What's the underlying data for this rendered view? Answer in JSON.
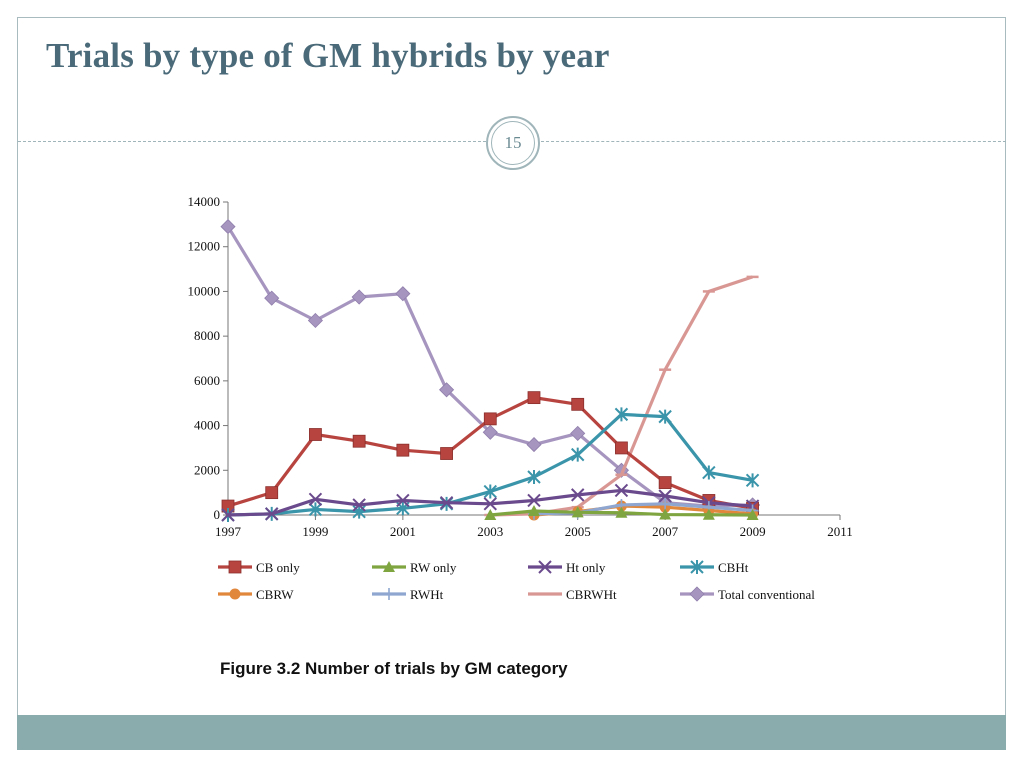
{
  "slide": {
    "title": "Trials by type of GM hybrids by year",
    "page_number": "15",
    "caption": "Figure 3.2 Number of trials by GM category"
  },
  "colors": {
    "title": "#4b6a79",
    "footer": "#8bacac",
    "rule": "#9fb5b9"
  },
  "chart_data": {
    "type": "line",
    "title": "",
    "xlabel": "",
    "ylabel": "",
    "xlim": [
      1997,
      2011
    ],
    "ylim": [
      0,
      14000
    ],
    "x_ticks": [
      "1997",
      "1999",
      "2001",
      "2003",
      "2005",
      "2007",
      "2009",
      "2011"
    ],
    "y_ticks": [
      "0",
      "2000",
      "4000",
      "6000",
      "8000",
      "10000",
      "12000",
      "14000"
    ],
    "grid": false,
    "legend_position": "bottom",
    "series": [
      {
        "name": "CB only",
        "color": "#b84440",
        "marker": "square",
        "x": [
          1997,
          1998,
          1999,
          2000,
          2001,
          2002,
          2003,
          2004,
          2005,
          2006,
          2007,
          2008,
          2009
        ],
        "y": [
          400,
          1000,
          3600,
          3300,
          2900,
          2750,
          4300,
          5250,
          4950,
          3000,
          1450,
          650,
          300
        ]
      },
      {
        "name": "RW only",
        "color": "#7fa540",
        "marker": "triangle",
        "x": [
          2003,
          2004,
          2005,
          2006,
          2007,
          2008,
          2009
        ],
        "y": [
          0,
          180,
          120,
          100,
          20,
          10,
          0
        ]
      },
      {
        "name": "Ht only",
        "color": "#6a4a8c",
        "marker": "x",
        "x": [
          1997,
          1998,
          1999,
          2000,
          2001,
          2002,
          2003,
          2004,
          2005,
          2006,
          2007,
          2008,
          2009
        ],
        "y": [
          0,
          50,
          700,
          450,
          650,
          550,
          500,
          650,
          900,
          1100,
          850,
          550,
          400
        ]
      },
      {
        "name": "CBHt",
        "color": "#3a94aa",
        "marker": "star",
        "x": [
          1997,
          1998,
          1999,
          2000,
          2001,
          2002,
          2003,
          2004,
          2005,
          2006,
          2007,
          2008,
          2009
        ],
        "y": [
          0,
          50,
          250,
          150,
          300,
          500,
          1050,
          1700,
          2700,
          4500,
          4400,
          1900,
          1550
        ]
      },
      {
        "name": "CBRW",
        "color": "#e0873c",
        "marker": "circle",
        "x": [
          2004,
          2005,
          2006,
          2007,
          2008,
          2009
        ],
        "y": [
          0,
          150,
          400,
          350,
          200,
          50
        ]
      },
      {
        "name": "RWHt",
        "color": "#8ea6d0",
        "marker": "plus",
        "x": [
          2004,
          2005,
          2006,
          2007,
          2008,
          2009
        ],
        "y": [
          50,
          100,
          450,
          500,
          350,
          200
        ]
      },
      {
        "name": "CBRWHt",
        "color": "#d99794",
        "marker": "dash",
        "x": [
          2003,
          2004,
          2005,
          2006,
          2007,
          2008,
          2009
        ],
        "y": [
          0,
          50,
          350,
          1800,
          6500,
          10000,
          10650
        ]
      },
      {
        "name": "Total conventional",
        "color": "#a695bf",
        "marker": "diamond",
        "x": [
          1997,
          1998,
          1999,
          2000,
          2001,
          2002,
          2003,
          2004,
          2005,
          2006,
          2007,
          2008,
          2009
        ],
        "y": [
          12900,
          9700,
          8700,
          9750,
          9900,
          5600,
          3700,
          3150,
          3650,
          2000,
          550,
          400,
          450
        ]
      }
    ]
  }
}
